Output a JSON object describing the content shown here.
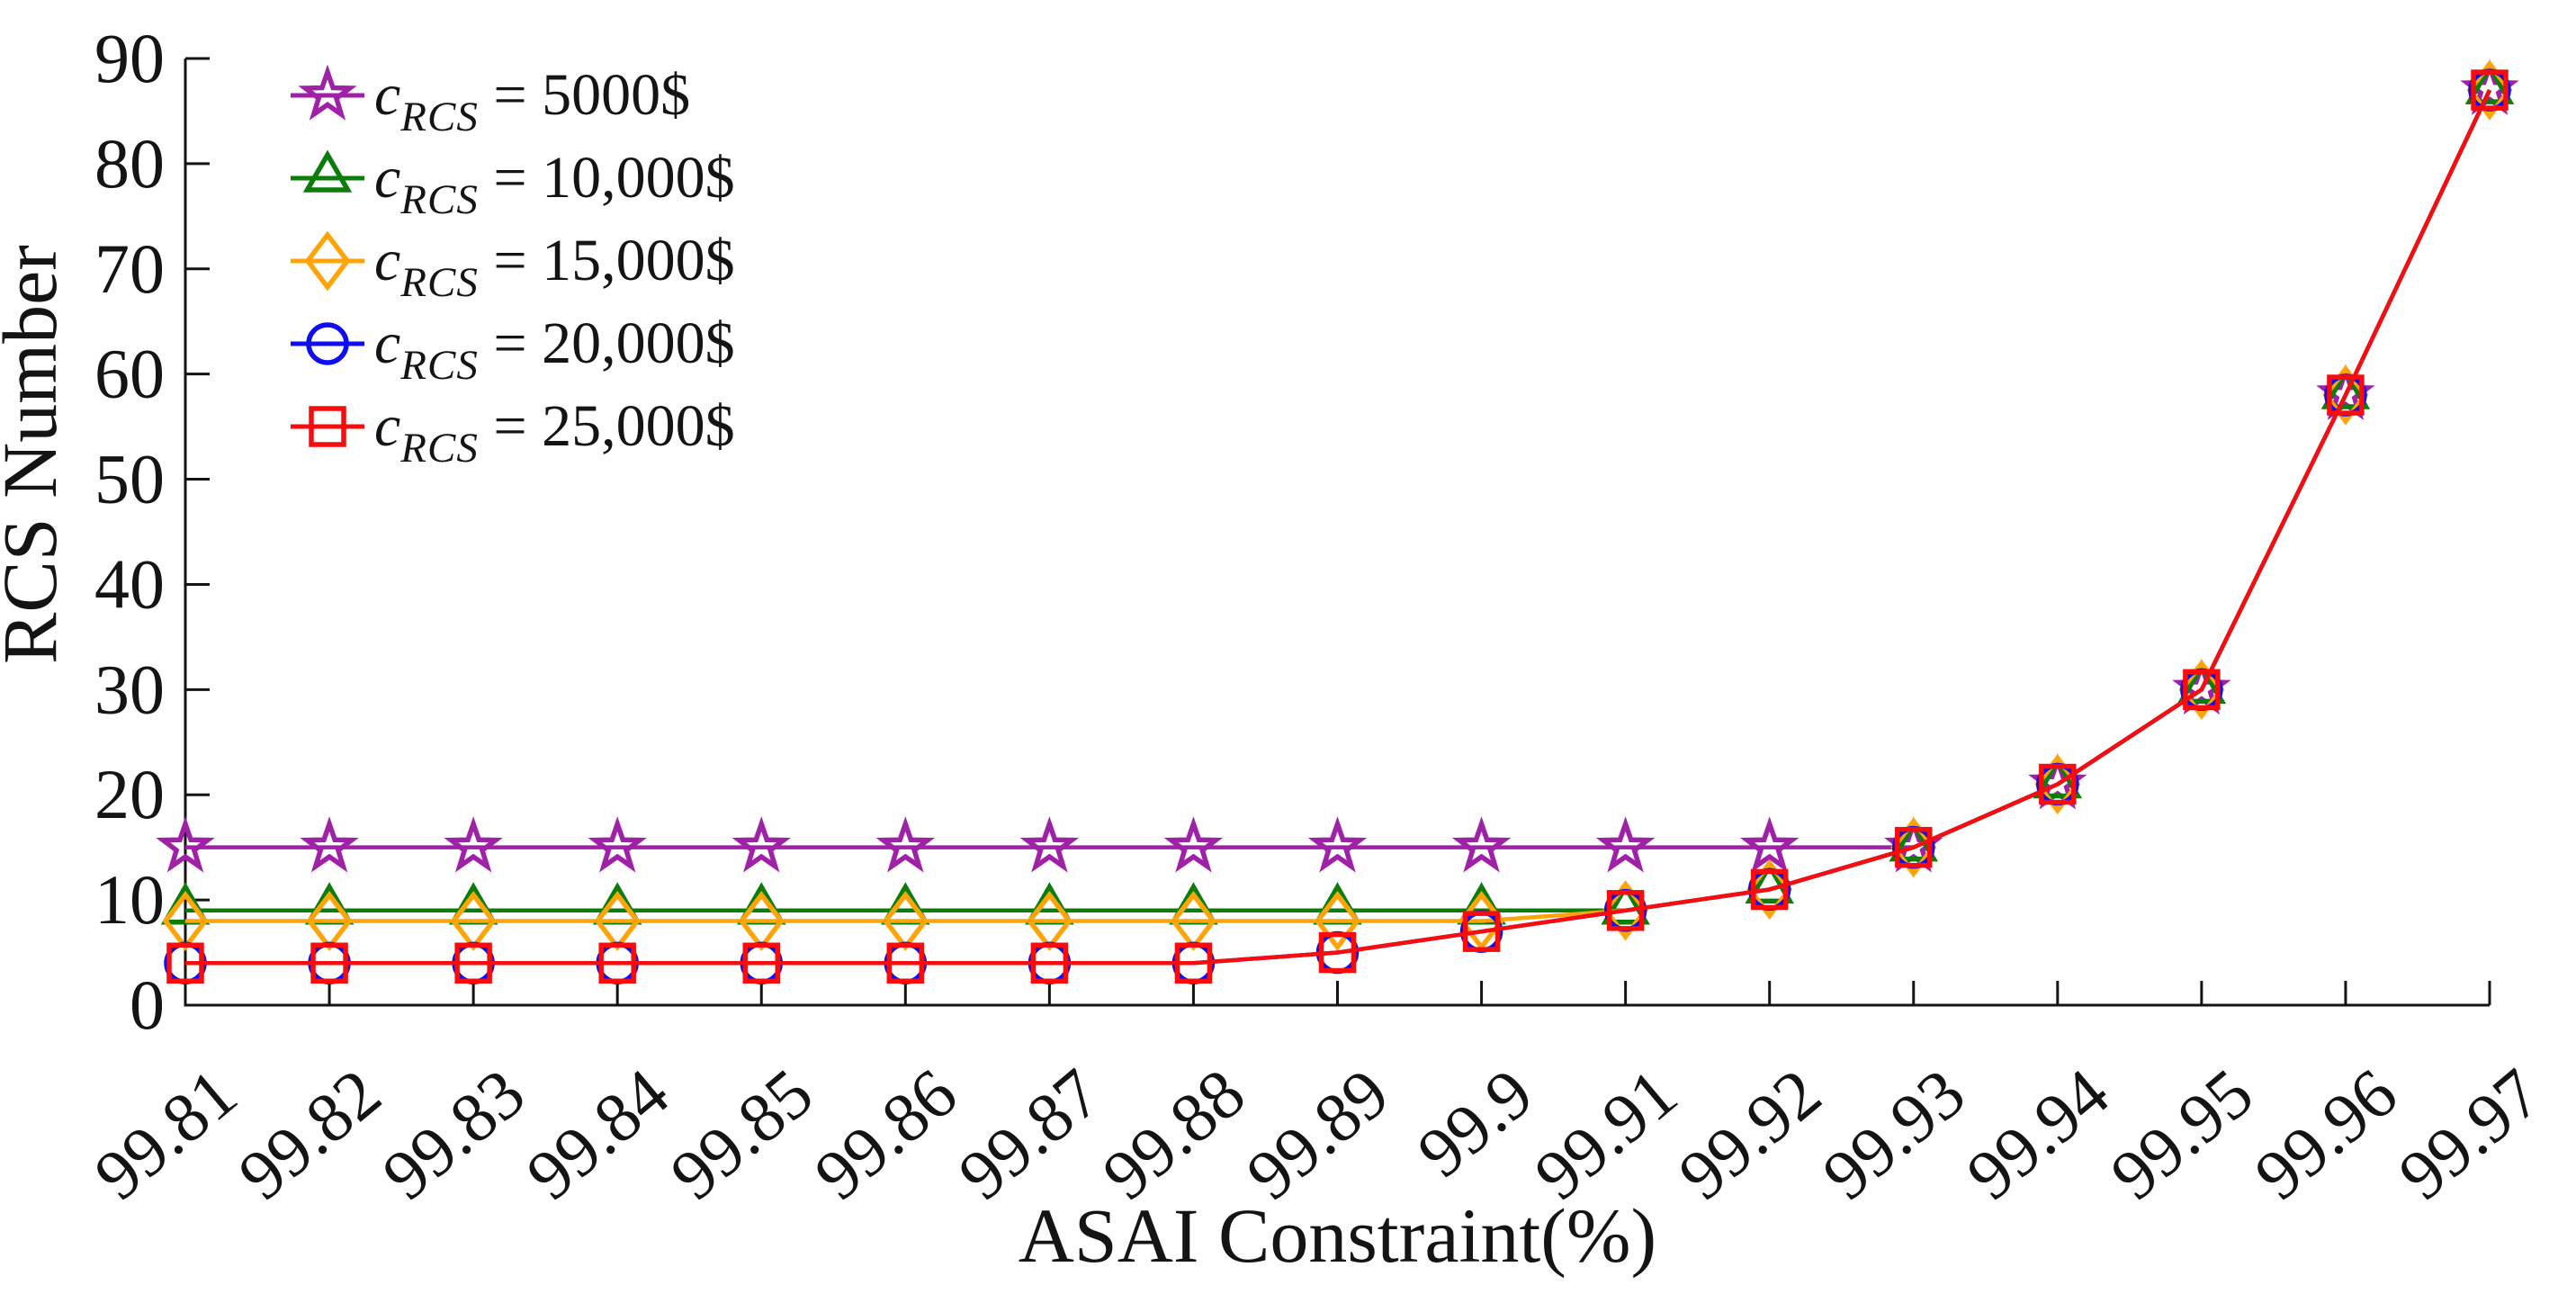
{
  "figure": {
    "background": "#ffffff",
    "axis_color": "#141414"
  },
  "chart_data": {
    "type": "line",
    "title": "",
    "xlabel": "ASAI Constraint(%)",
    "ylabel": "RCS Number",
    "x": [
      99.81,
      99.82,
      99.83,
      99.84,
      99.85,
      99.86,
      99.87,
      99.88,
      99.89,
      99.9,
      99.91,
      99.92,
      99.93,
      99.94,
      99.95,
      99.96,
      99.97
    ],
    "x_tick_labels": [
      "99.81",
      "99.82",
      "99.83",
      "99.84",
      "99.85",
      "99.86",
      "99.87",
      "99.88",
      "99.89",
      "99.9",
      "99.91",
      "99.92",
      "99.93",
      "99.94",
      "99.95",
      "99.96",
      "99.97"
    ],
    "y_ticks": [
      0,
      10,
      20,
      30,
      40,
      50,
      60,
      70,
      80,
      90
    ],
    "xlim": [
      99.81,
      99.97
    ],
    "ylim": [
      0,
      90
    ],
    "grid": false,
    "legend_position": "top-left",
    "series": [
      {
        "name": "c_RCS = 5000$",
        "legend_var": "c",
        "legend_sub": "RCS",
        "legend_eq": " = 5000$",
        "marker": "star",
        "color": "#A021A8",
        "values": [
          15,
          15,
          15,
          15,
          15,
          15,
          15,
          15,
          15,
          15,
          15,
          15,
          15,
          21,
          30,
          58,
          87
        ]
      },
      {
        "name": "c_RCS = 10,000$",
        "legend_var": "c",
        "legend_sub": "RCS",
        "legend_eq": " = 10,000$",
        "marker": "triangle",
        "color": "#0B7D0B",
        "values": [
          9,
          9,
          9,
          9,
          9,
          9,
          9,
          9,
          9,
          9,
          9,
          11,
          15,
          21,
          30,
          58,
          87
        ]
      },
      {
        "name": "c_RCS = 15,000$",
        "legend_var": "c",
        "legend_sub": "RCS",
        "legend_eq": " = 15,000$",
        "marker": "diamond",
        "color": "#FFA408",
        "values": [
          8,
          8,
          8,
          8,
          8,
          8,
          8,
          8,
          8,
          8,
          9,
          11,
          15,
          21,
          30,
          58,
          87
        ]
      },
      {
        "name": "c_RCS = 20,000$",
        "legend_var": "c",
        "legend_sub": "RCS",
        "legend_eq": " = 20,000$",
        "marker": "circle",
        "color": "#0E0EF0",
        "values": [
          4,
          4,
          4,
          4,
          4,
          4,
          4,
          4,
          5,
          7,
          9,
          11,
          15,
          21,
          30,
          58,
          87
        ]
      },
      {
        "name": "c_RCS = 25,000$",
        "legend_var": "c",
        "legend_sub": "RCS",
        "legend_eq": " = 25,000$",
        "marker": "square",
        "color": "#F70D0D",
        "values": [
          4,
          4,
          4,
          4,
          4,
          4,
          4,
          4,
          5,
          7,
          9,
          11,
          15,
          21,
          30,
          58,
          87
        ]
      }
    ]
  }
}
